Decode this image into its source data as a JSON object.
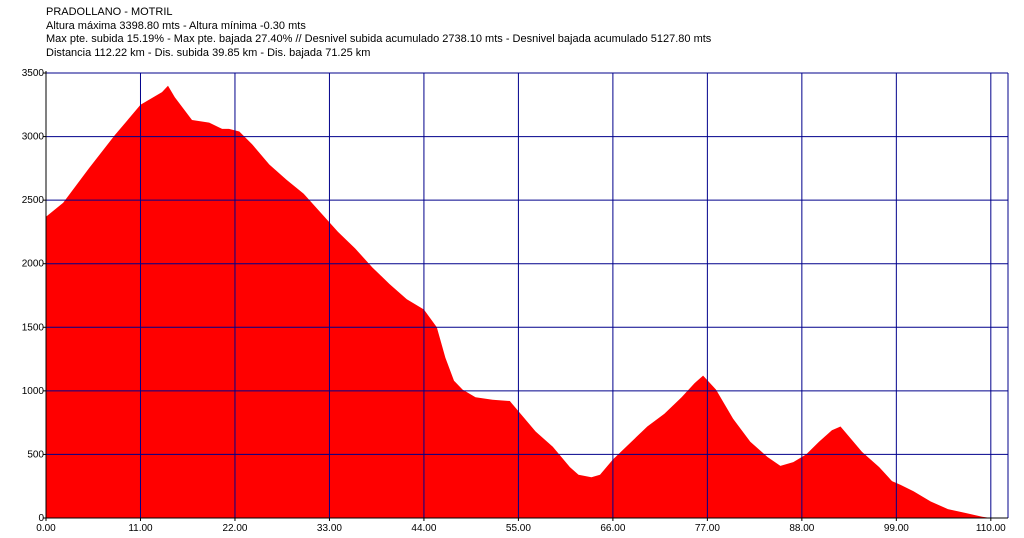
{
  "header": {
    "title": "PRADOLLANO - MOTRIL",
    "line1": "Altura máxima 3398.80 mts - Altura mínima -0.30 mts",
    "line2": "Max pte. subida 15.19%  - Max pte. bajada 27.40% // Desnivel subida acumulado 2738.10 mts - Desnivel bajada acumulado 5127.80 mts",
    "line3": "Distancia 112.22 km  - Dis. subida 39.85 km - Dis. bajada 71.25 km"
  },
  "colors": {
    "fill": "#ff0000",
    "grid": "#00008b",
    "axis": "#000000"
  },
  "chart_data": {
    "type": "area",
    "title": "PRADOLLANO - MOTRIL",
    "xlabel": "",
    "ylabel": "",
    "xlim": [
      0,
      112
    ],
    "ylim": [
      0,
      3500
    ],
    "grid": true,
    "x_ticks": [
      "0.00",
      "11.00",
      "22.00",
      "33.00",
      "44.00",
      "55.00",
      "66.00",
      "77.00",
      "88.00",
      "99.00",
      "110.00"
    ],
    "y_ticks": [
      "0",
      "500",
      "1000",
      "1500",
      "2000",
      "2500",
      "3000",
      "3500"
    ],
    "x": [
      0,
      2,
      5,
      8,
      11,
      13.5,
      14.2,
      15,
      17,
      19,
      20.5,
      21.3,
      22.5,
      24,
      26,
      28,
      30,
      32,
      34,
      36,
      38,
      40,
      42,
      44,
      45.5,
      46.5,
      47.5,
      48.5,
      50,
      52,
      54,
      55.5,
      57,
      59,
      61,
      62,
      63.5,
      64.5,
      66,
      68,
      70,
      72,
      74,
      75.5,
      76.5,
      78,
      80,
      82,
      84,
      85.5,
      87,
      88.5,
      90,
      91.5,
      92.5,
      93.5,
      95,
      97,
      98.5,
      99.5,
      101,
      103,
      105,
      107,
      109,
      110,
      112
    ],
    "y": [
      2370,
      2480,
      2750,
      3010,
      3250,
      3350,
      3399,
      3310,
      3130,
      3110,
      3060,
      3060,
      3040,
      2940,
      2780,
      2660,
      2550,
      2400,
      2250,
      2120,
      1970,
      1840,
      1720,
      1640,
      1500,
      1260,
      1080,
      1010,
      950,
      930,
      920,
      800,
      680,
      560,
      400,
      340,
      320,
      340,
      460,
      590,
      720,
      820,
      950,
      1060,
      1120,
      1010,
      780,
      600,
      480,
      410,
      440,
      500,
      600,
      690,
      720,
      640,
      520,
      400,
      290,
      260,
      210,
      130,
      70,
      40,
      10,
      0,
      0
    ]
  }
}
